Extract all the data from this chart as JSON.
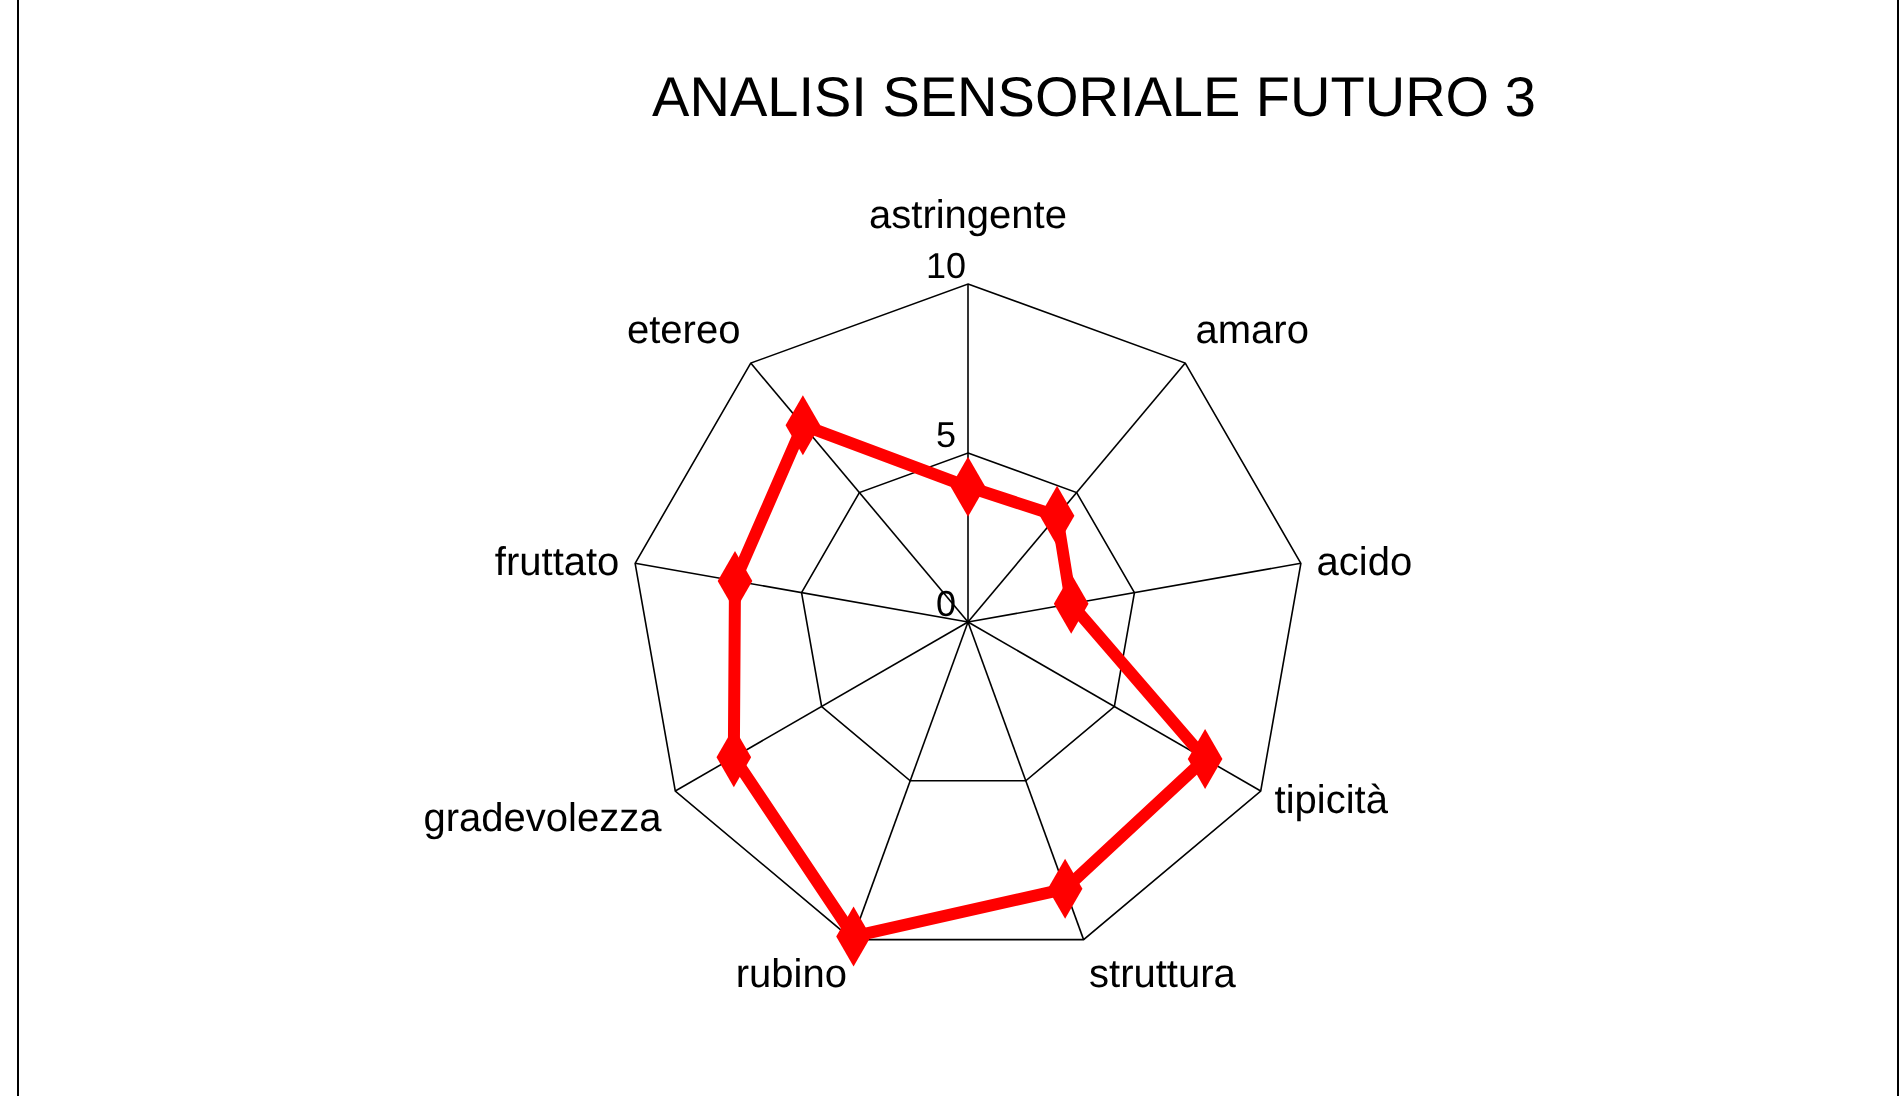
{
  "chart_data": {
    "type": "radar",
    "title": "ANALISI SENSORIALE FUTURO 3",
    "categories": [
      "astringente",
      "amaro",
      "acido",
      "tipicità",
      "struttura",
      "rubino",
      "gradevolezza",
      "fruttato",
      "etereo"
    ],
    "series": [
      {
        "color": "#ff0000",
        "values": [
          4.0,
          4.1,
          3.1,
          8.1,
          8.4,
          9.9,
          8.0,
          7.0,
          7.6
        ]
      }
    ],
    "ylim": [
      0,
      10
    ],
    "yticks": [
      0,
      5,
      10
    ],
    "grid": true,
    "marker": "diamond",
    "line_style": "solid"
  }
}
